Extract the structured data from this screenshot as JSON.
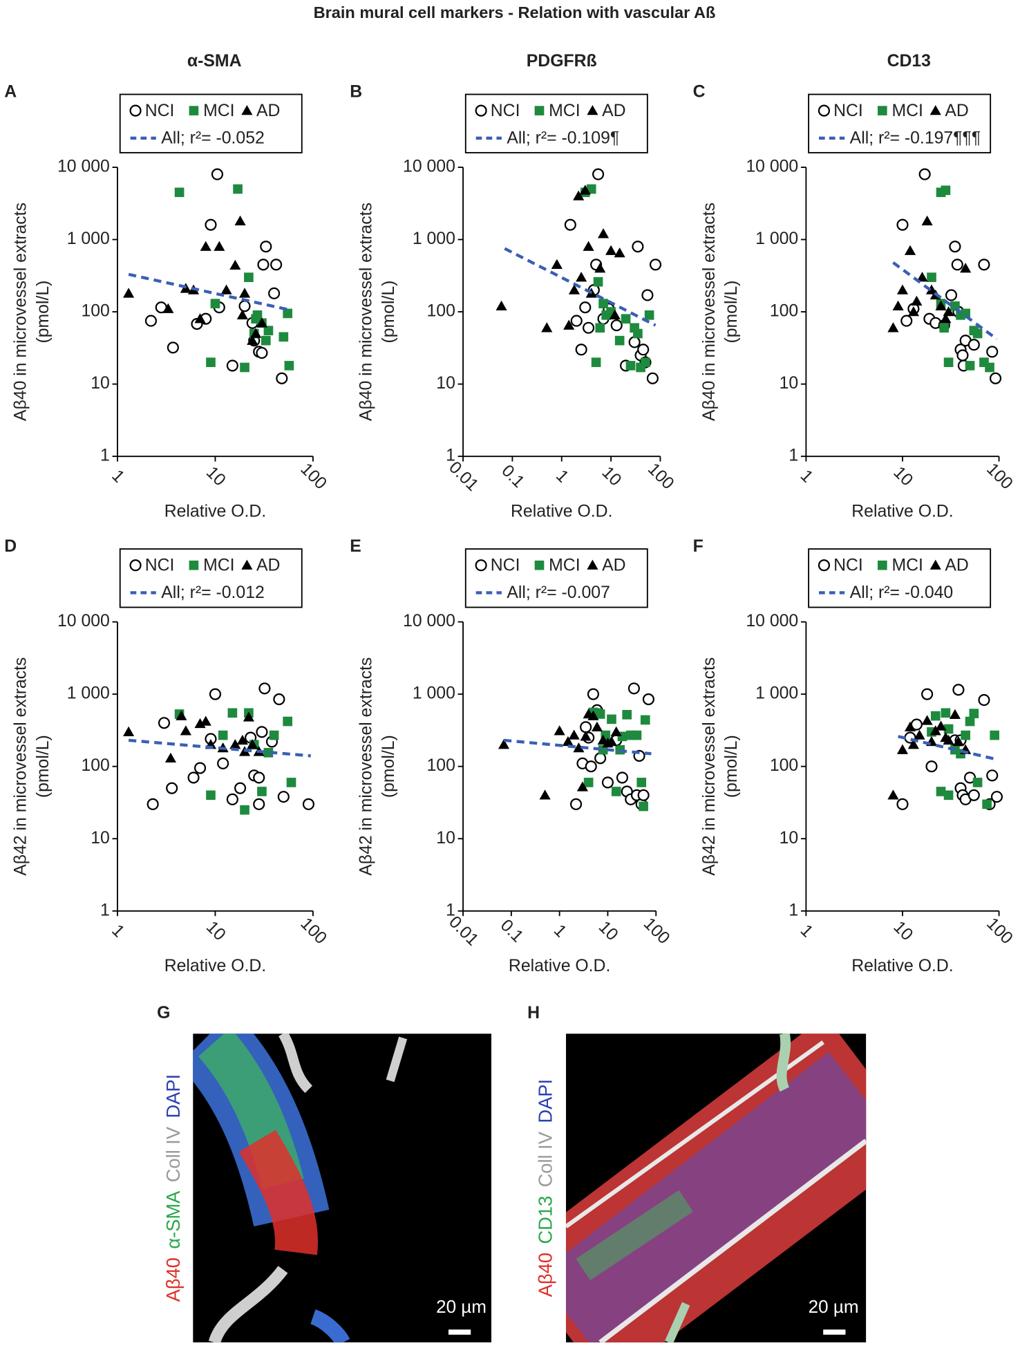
{
  "title": "Brain mural cell markers - Relation with vascular Aß",
  "columns": [
    "α-SMA",
    "PDGFRß",
    "CD13"
  ],
  "chart_data": [
    {
      "type": "scatter",
      "panel": "A",
      "xlabel": "Relative O.D.",
      "ylabel": [
        "Aβ40 in microvessel extracts",
        "(pmol/L)"
      ],
      "xscale": "log",
      "yscale": "log",
      "xlim": [
        1,
        100
      ],
      "ylim": [
        1,
        10000
      ],
      "xticks": [
        1,
        10,
        100
      ],
      "yticks": [
        1,
        10,
        100,
        {
          "value": 1000,
          "label": "1 000"
        },
        {
          "value": 10000,
          "label": "10 000"
        }
      ],
      "series": [
        {
          "name": "NCI",
          "color": "#000000",
          "marker": "circle",
          "x": [
            2.2,
            2.8,
            3.7,
            6.5,
            8,
            9,
            10.5,
            11,
            15,
            20,
            25,
            28,
            30,
            31,
            33,
            40,
            42,
            48,
            24
          ],
          "values": [
            75,
            115,
            32,
            68,
            80,
            1600,
            8000,
            115,
            18,
            120,
            40,
            28,
            27,
            450,
            800,
            180,
            450,
            12,
            70
          ]
        },
        {
          "name": "MCI",
          "color": "#1e8a3e",
          "marker": "square",
          "x": [
            4.3,
            10,
            9,
            17,
            20,
            22,
            25,
            27,
            30,
            33,
            35,
            50,
            55,
            57,
            26
          ],
          "values": [
            4500,
            130,
            20,
            5000,
            17,
            300,
            50,
            90,
            70,
            40,
            55,
            45,
            95,
            18,
            80
          ]
        },
        {
          "name": "AD",
          "color": "#000000",
          "marker": "triangle",
          "x": [
            1.3,
            3.3,
            5,
            6,
            7,
            8,
            11,
            13,
            18,
            16,
            20,
            24,
            26,
            30,
            19
          ],
          "values": [
            180,
            110,
            210,
            200,
            80,
            800,
            800,
            200,
            1800,
            440,
            180,
            40,
            50,
            70,
            90
          ]
        },
        {
          "name": "All; r²= -0.052",
          "color": "#3a5fb4",
          "marker": "dashed-line",
          "x": [
            1.3,
            60
          ],
          "values": [
            330,
            105
          ]
        }
      ]
    },
    {
      "type": "scatter",
      "panel": "B",
      "xlabel": "Relative O.D.",
      "ylabel": [
        "Aβ40 in microvessel extracts",
        "(pmol/L)"
      ],
      "xscale": "log",
      "yscale": "log",
      "xlim": [
        0.01,
        100
      ],
      "ylim": [
        1,
        10000
      ],
      "xticks": [
        0.01,
        0.1,
        1,
        10,
        100
      ],
      "yticks": [
        1,
        10,
        100,
        {
          "value": 1000,
          "label": "1 000"
        },
        {
          "value": 10000,
          "label": "10 000"
        }
      ],
      "series": [
        {
          "name": "NCI",
          "color": "#000000",
          "marker": "circle",
          "x": [
            1.5,
            2,
            2.5,
            3,
            3.5,
            4.5,
            5,
            5.5,
            7,
            9,
            13,
            20,
            30,
            35,
            40,
            45,
            50,
            55,
            70,
            80
          ],
          "values": [
            1600,
            75,
            30,
            115,
            60,
            200,
            450,
            8000,
            80,
            110,
            65,
            18,
            38,
            800,
            25,
            30,
            20,
            170,
            12,
            450
          ]
        },
        {
          "name": "MCI",
          "color": "#1e8a3e",
          "marker": "square",
          "x": [
            3,
            4,
            5,
            5.5,
            6,
            7,
            8,
            10,
            15,
            20,
            30,
            35,
            40,
            50,
            60,
            25
          ],
          "values": [
            4500,
            5000,
            20,
            260,
            60,
            130,
            90,
            100,
            40,
            80,
            60,
            50,
            17,
            20,
            90,
            18
          ]
        },
        {
          "name": "AD",
          "color": "#000000",
          "marker": "triangle",
          "x": [
            0.06,
            0.5,
            0.8,
            1.4,
            1.8,
            2.2,
            2.5,
            3,
            3.5,
            4,
            7,
            10,
            12,
            15,
            6
          ],
          "values": [
            120,
            60,
            450,
            65,
            200,
            4000,
            300,
            4800,
            800,
            180,
            1200,
            700,
            90,
            650,
            400
          ]
        },
        {
          "name": "All; r²= -0.109¶",
          "color": "#3a5fb4",
          "marker": "dashed-line",
          "x": [
            0.07,
            80
          ],
          "values": [
            750,
            65
          ]
        }
      ]
    },
    {
      "type": "scatter",
      "panel": "C",
      "xlabel": "Relative O.D.",
      "ylabel": [
        "Aβ40 in microvessel extracts",
        "(pmol/L)"
      ],
      "xscale": "log",
      "yscale": "log",
      "xlim": [
        1,
        100
      ],
      "ylim": [
        1,
        10000
      ],
      "xticks": [
        1,
        10,
        100
      ],
      "yticks": [
        1,
        10,
        100,
        {
          "value": 1000,
          "label": "1 000"
        },
        {
          "value": 10000,
          "label": "10 000"
        }
      ],
      "series": [
        {
          "name": "NCI",
          "color": "#000000",
          "marker": "circle",
          "x": [
            10,
            11,
            13,
            17,
            19,
            22,
            27,
            32,
            35,
            37,
            38,
            40,
            42,
            43,
            45,
            55,
            70,
            85,
            92
          ],
          "values": [
            1600,
            75,
            110,
            8000,
            80,
            70,
            65,
            170,
            800,
            450,
            100,
            30,
            25,
            18,
            40,
            35,
            450,
            28,
            12
          ]
        },
        {
          "name": "MCI",
          "color": "#1e8a3e",
          "marker": "square",
          "x": [
            20,
            25,
            28,
            25,
            30,
            35,
            40,
            45,
            50,
            55,
            60,
            70,
            80,
            27
          ],
          "values": [
            300,
            4500,
            4800,
            130,
            20,
            120,
            90,
            95,
            18,
            55,
            50,
            20,
            17,
            60
          ]
        },
        {
          "name": "AD",
          "color": "#000000",
          "marker": "triangle",
          "x": [
            8,
            9,
            10,
            12,
            14,
            18,
            20,
            22,
            25,
            28,
            16,
            30,
            45,
            13
          ],
          "values": [
            60,
            120,
            200,
            700,
            140,
            1800,
            200,
            170,
            120,
            80,
            300,
            100,
            400,
            100
          ]
        },
        {
          "name": "All; r²= -0.197¶¶¶",
          "color": "#3a5fb4",
          "marker": "dashed-line",
          "x": [
            8,
            95
          ],
          "values": [
            480,
            42
          ]
        }
      ]
    },
    {
      "type": "scatter",
      "panel": "D",
      "xlabel": "Relative O.D.",
      "ylabel": [
        "Aβ42 in microvessel extracts",
        "(pmol/L)"
      ],
      "xscale": "log",
      "yscale": "log",
      "xlim": [
        1,
        100
      ],
      "ylim": [
        1,
        10000
      ],
      "xticks": [
        1,
        10,
        100
      ],
      "yticks": [
        1,
        10,
        100,
        {
          "value": 1000,
          "label": "1 000"
        },
        {
          "value": 10000,
          "label": "10 000"
        }
      ],
      "series": [
        {
          "name": "NCI",
          "color": "#000000",
          "marker": "circle",
          "x": [
            2.3,
            3,
            3.6,
            6,
            7,
            9,
            10,
            12,
            15,
            18,
            23,
            25,
            28,
            30,
            32,
            38,
            45,
            50,
            90,
            28
          ],
          "values": [
            30,
            400,
            50,
            70,
            95,
            240,
            1000,
            110,
            35,
            50,
            250,
            75,
            70,
            300,
            1200,
            220,
            850,
            38,
            30,
            30
          ]
        },
        {
          "name": "MCI",
          "color": "#1e8a3e",
          "marker": "square",
          "x": [
            4.3,
            9,
            15,
            20,
            22,
            25,
            30,
            40,
            55,
            60,
            35,
            12
          ],
          "values": [
            530,
            40,
            550,
            25,
            550,
            200,
            45,
            270,
            420,
            60,
            155,
            270
          ]
        },
        {
          "name": "AD",
          "color": "#000000",
          "marker": "triangle",
          "x": [
            1.3,
            3.5,
            4.5,
            5,
            7,
            8,
            9,
            12,
            16,
            19,
            20,
            22,
            28,
            24
          ],
          "values": [
            300,
            130,
            500,
            310,
            390,
            420,
            200,
            180,
            200,
            230,
            160,
            480,
            160,
            200
          ]
        },
        {
          "name": "All; r²= -0.012",
          "color": "#3a5fb4",
          "marker": "dashed-line",
          "x": [
            1.3,
            95
          ],
          "values": [
            230,
            140
          ]
        }
      ]
    },
    {
      "type": "scatter",
      "panel": "E",
      "xlabel": "Relative O.D.",
      "ylabel": [
        "Aβ42 in microvessel extracts",
        "(pmol/L)"
      ],
      "xscale": "log",
      "yscale": "log",
      "xlim": [
        0.01,
        100
      ],
      "ylim": [
        1,
        10000
      ],
      "xticks": [
        0.01,
        0.1,
        1,
        10,
        100
      ],
      "yticks": [
        1,
        10,
        100,
        {
          "value": 1000,
          "label": "1 000"
        },
        {
          "value": 10000,
          "label": "10 000"
        }
      ],
      "series": [
        {
          "name": "NCI",
          "color": "#000000",
          "marker": "circle",
          "x": [
            2.2,
            3,
            3.5,
            4.5,
            5,
            6,
            7,
            10,
            15,
            20,
            25,
            30,
            35,
            40,
            45,
            50,
            55,
            70,
            4
          ],
          "values": [
            30,
            110,
            350,
            100,
            1000,
            600,
            130,
            60,
            230,
            70,
            45,
            35,
            1200,
            40,
            140,
            30,
            40,
            850,
            250
          ]
        },
        {
          "name": "MCI",
          "color": "#1e8a3e",
          "marker": "square",
          "x": [
            4,
            5,
            6,
            7,
            8,
            9,
            12,
            15,
            20,
            25,
            30,
            40,
            50,
            55,
            60,
            18
          ],
          "values": [
            60,
            560,
            550,
            530,
            170,
            270,
            450,
            45,
            260,
            520,
            270,
            270,
            60,
            28,
            440,
            170
          ]
        },
        {
          "name": "AD",
          "color": "#000000",
          "marker": "triangle",
          "x": [
            0.07,
            0.5,
            1,
            1.5,
            2,
            2.5,
            3,
            3.5,
            4,
            5,
            6,
            8,
            10,
            12,
            15
          ],
          "values": [
            200,
            40,
            310,
            220,
            270,
            180,
            52,
            260,
            530,
            500,
            350,
            230,
            210,
            220,
            300
          ]
        },
        {
          "name": "All; r²= -0.007",
          "color": "#3a5fb4",
          "marker": "dashed-line",
          "x": [
            0.07,
            80
          ],
          "values": [
            230,
            150
          ]
        }
      ]
    },
    {
      "type": "scatter",
      "panel": "F",
      "xlabel": "Relative O.D.",
      "ylabel": [
        "Aβ42 in microvessel extracts",
        "(pmol/L)"
      ],
      "xscale": "log",
      "yscale": "log",
      "xlim": [
        1,
        100
      ],
      "ylim": [
        1,
        10000
      ],
      "xticks": [
        1,
        10,
        100
      ],
      "yticks": [
        1,
        10,
        100,
        {
          "value": 1000,
          "label": "1 000"
        },
        {
          "value": 10000,
          "label": "10 000"
        }
      ],
      "series": [
        {
          "name": "NCI",
          "color": "#000000",
          "marker": "circle",
          "x": [
            10,
            12,
            14,
            18,
            20,
            35,
            38,
            40,
            42,
            45,
            50,
            55,
            70,
            80,
            85,
            95,
            40
          ],
          "values": [
            30,
            250,
            380,
            1000,
            100,
            230,
            1150,
            50,
            40,
            35,
            70,
            40,
            830,
            30,
            75,
            38,
            230
          ]
        },
        {
          "name": "MCI",
          "color": "#1e8a3e",
          "marker": "square",
          "x": [
            20,
            22,
            28,
            25,
            30,
            30,
            40,
            45,
            50,
            55,
            60,
            75,
            90,
            35
          ],
          "values": [
            300,
            500,
            550,
            45,
            40,
            330,
            150,
            270,
            420,
            540,
            60,
            30,
            270,
            170
          ]
        },
        {
          "name": "AD",
          "color": "#000000",
          "marker": "triangle",
          "x": [
            8,
            10,
            12,
            13,
            15,
            18,
            20,
            22,
            25,
            30,
            38,
            45,
            35,
            28
          ],
          "values": [
            40,
            170,
            350,
            200,
            270,
            430,
            220,
            310,
            360,
            230,
            220,
            170,
            520,
            250
          ]
        },
        {
          "name": "All; r²= -0.040",
          "color": "#3a5fb4",
          "marker": "dashed-line",
          "x": [
            9,
            95
          ],
          "values": [
            260,
            125
          ]
        }
      ]
    }
  ],
  "images": [
    {
      "letter": "G",
      "stains": [
        "Aβ40",
        "α-SMA",
        "Coll IV",
        "DAPI"
      ],
      "scale_bar": "20 µm"
    },
    {
      "letter": "H",
      "stains": [
        "Aβ40",
        "CD13",
        "Coll IV",
        "DAPI"
      ],
      "scale_bar": "20 µm"
    }
  ]
}
